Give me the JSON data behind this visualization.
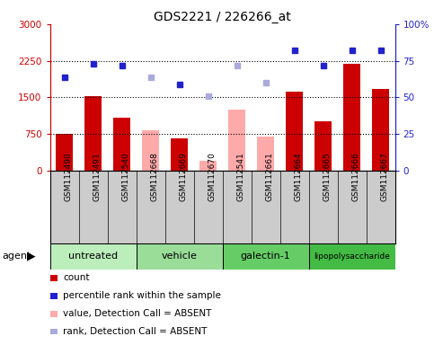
{
  "title": "GDS2221 / 226266_at",
  "samples": [
    "GSM112490",
    "GSM112491",
    "GSM112540",
    "GSM112668",
    "GSM112669",
    "GSM112670",
    "GSM112541",
    "GSM112661",
    "GSM112664",
    "GSM112665",
    "GSM112666",
    "GSM112667"
  ],
  "groups": [
    {
      "label": "untreated",
      "start": 0,
      "end": 3,
      "color": "#bbeebb"
    },
    {
      "label": "vehicle",
      "start": 3,
      "end": 6,
      "color": "#99dd99"
    },
    {
      "label": "galectin-1",
      "start": 6,
      "end": 9,
      "color": "#66cc66"
    },
    {
      "label": "lipopolysaccharide",
      "start": 9,
      "end": 12,
      "color": "#44bb44"
    }
  ],
  "bar_values": [
    750,
    1530,
    1080,
    null,
    660,
    null,
    null,
    null,
    1620,
    1020,
    2180,
    1680
  ],
  "bar_absent_values": [
    null,
    null,
    null,
    820,
    null,
    200,
    1260,
    700,
    null,
    null,
    null,
    null
  ],
  "rank_present_pct": [
    64,
    73,
    72,
    null,
    59,
    null,
    null,
    null,
    82,
    72,
    82,
    82
  ],
  "rank_absent_pct": [
    null,
    null,
    null,
    64,
    null,
    51,
    72,
    60,
    null,
    null,
    null,
    null
  ],
  "ylim_left": [
    0,
    3000
  ],
  "ylim_right": [
    0,
    100
  ],
  "yticks_left": [
    0,
    750,
    1500,
    2250,
    3000
  ],
  "ytick_labels_left": [
    "0",
    "750",
    "1500",
    "2250",
    "3000"
  ],
  "yticks_right": [
    0,
    25,
    50,
    75,
    100
  ],
  "ytick_labels_right": [
    "0",
    "25",
    "50",
    "75",
    "100%"
  ],
  "dotted_lines_pct": [
    25,
    50,
    75
  ],
  "bar_color": "#cc0000",
  "bar_absent_color": "#ffaaaa",
  "rank_present_color": "#2222cc",
  "rank_absent_color": "#aaaadd",
  "bar_width": 0.6,
  "legend_items": [
    {
      "color": "#cc0000",
      "label": "count"
    },
    {
      "color": "#2222cc",
      "label": "percentile rank within the sample"
    },
    {
      "color": "#ffaaaa",
      "label": "value, Detection Call = ABSENT"
    },
    {
      "color": "#aaaadd",
      "label": "rank, Detection Call = ABSENT"
    }
  ],
  "agent_label": "agent",
  "left_axis_color": "#cc0000",
  "right_axis_color": "#2222cc",
  "sample_area_color": "#cccccc",
  "fig_width": 4.83,
  "fig_height": 3.84,
  "fig_dpi": 100
}
